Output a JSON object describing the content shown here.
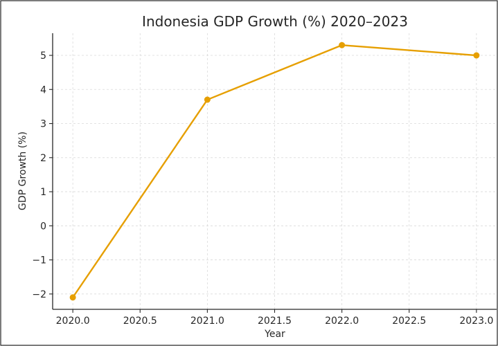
{
  "chart_data": {
    "type": "line",
    "title": "Indonesia GDP Growth (%) 2020–2023",
    "xlabel": "Year",
    "ylabel": "GDP Growth (%)",
    "x": [
      2020,
      2021,
      2022,
      2023
    ],
    "series": [
      {
        "values": [
          -2.1,
          3.7,
          5.3,
          5.0
        ],
        "color": "#e69f00"
      }
    ],
    "xlim": [
      2019.85,
      2023.15
    ],
    "ylim": [
      -2.45,
      5.65
    ],
    "xticks": [
      2020.0,
      2020.5,
      2021.0,
      2021.5,
      2022.0,
      2022.5,
      2023.0
    ],
    "xtick_labels": [
      "2020.0",
      "2020.5",
      "2021.0",
      "2021.5",
      "2022.0",
      "2022.5",
      "2023.0"
    ],
    "yticks": [
      -2,
      -1,
      0,
      1,
      2,
      3,
      4,
      5
    ],
    "ytick_labels": [
      "−2",
      "−1",
      "0",
      "1",
      "2",
      "3",
      "4",
      "5"
    ],
    "grid": true,
    "marker": "circle"
  }
}
